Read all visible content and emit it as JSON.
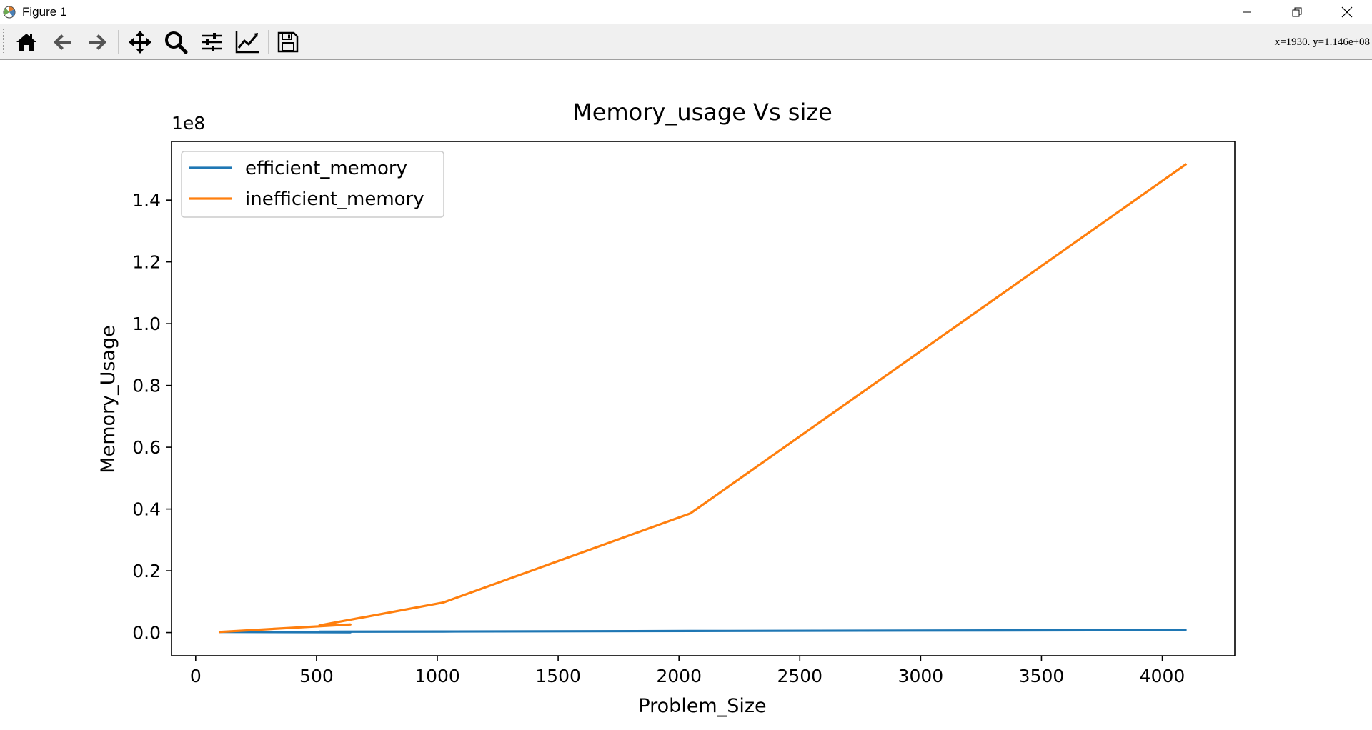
{
  "window": {
    "title": "Figure 1",
    "controls": [
      "minimize",
      "restore",
      "close"
    ]
  },
  "toolbar": {
    "buttons": [
      {
        "name": "home",
        "icon": "home-icon"
      },
      {
        "name": "back",
        "icon": "arrow-left-icon"
      },
      {
        "name": "forward",
        "icon": "arrow-right-icon"
      },
      {
        "name": "pan",
        "icon": "move-icon"
      },
      {
        "name": "zoom",
        "icon": "magnifier-icon"
      },
      {
        "name": "configure-subplots",
        "icon": "sliders-icon"
      },
      {
        "name": "edit-axis",
        "icon": "line-chart-icon"
      },
      {
        "name": "save",
        "icon": "floppy-disk-icon"
      }
    ],
    "coordinates": "x=1930. y=1.146e+08"
  },
  "chart_data": {
    "type": "line",
    "title": "Memory_usage Vs size",
    "xlabel": "Problem_Size",
    "ylabel": "Memory_Usage",
    "offset_text": "1e8",
    "xlim": [
      -100,
      4300
    ],
    "ylim": [
      -7500000,
      159000000
    ],
    "xticks": [
      0,
      500,
      1000,
      1500,
      2000,
      2500,
      3000,
      3500,
      4000
    ],
    "yticks": [
      0,
      20000000,
      40000000,
      60000000,
      80000000,
      100000000,
      120000000,
      140000000
    ],
    "ytick_labels": [
      "0.0",
      "0.2",
      "0.4",
      "0.6",
      "0.8",
      "1.0",
      "1.2",
      "1.4"
    ],
    "legend_position": "upper left",
    "series": [
      {
        "name": "efficient_memory",
        "color": "#1f77b4",
        "x": [
          100,
          640,
          512,
          1024,
          2048,
          4096
        ],
        "y": [
          200000,
          100000,
          300000,
          350000,
          500000,
          800000
        ]
      },
      {
        "name": "inefficient_memory",
        "color": "#ff7f0e",
        "x": [
          100,
          640,
          512,
          1024,
          2048,
          4096
        ],
        "y": [
          200000,
          2600000,
          2300000,
          9700000,
          38600000,
          151500000
        ]
      }
    ]
  }
}
